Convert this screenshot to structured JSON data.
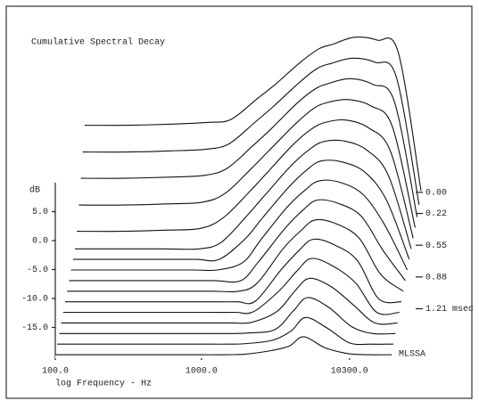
{
  "chart_data": {
    "type": "waterfall",
    "title": "Cumulative Spectral Decay",
    "y_label": "dB",
    "x_label": "log Frequency - Hz",
    "annotation": "MLSSA",
    "log_x": true,
    "color": "#111111",
    "x": [
      100,
      200,
      400,
      700,
      1000,
      1500,
      2000,
      3000,
      4000,
      5000,
      7000,
      10000,
      14000,
      20000
    ],
    "xlim": [
      100,
      20000
    ],
    "xticks": [
      {
        "value": 100,
        "label": "100.0"
      },
      {
        "value": 1000,
        "label": "1000.0"
      },
      {
        "value": 10300,
        "label": "10300.0"
      }
    ],
    "ylim": [
      -20,
      10
    ],
    "yticks": [
      {
        "value": 5,
        "label": "5.0"
      },
      {
        "value": 0,
        "label": "0.0"
      },
      {
        "value": -5,
        "label": "-5.0"
      },
      {
        "value": -10,
        "label": "-10.0"
      },
      {
        "value": -15,
        "label": "-15.0"
      }
    ],
    "z": [
      0,
      0.11,
      0.22,
      0.33,
      0.44,
      0.55,
      0.66,
      0.77,
      0.88,
      0.99,
      1.1,
      1.21,
      1.32,
      1.43,
      1.54,
      1.65
    ],
    "zticks": [
      {
        "value": 0,
        "label": "0.00"
      },
      {
        "value": 0.22,
        "label": "0.22"
      },
      {
        "value": 0.55,
        "label": "0.55"
      },
      {
        "value": 0.88,
        "label": "0.88"
      },
      {
        "value": 1.21,
        "label": "1.21 msec"
      }
    ],
    "series": [
      {
        "values": [
          -7.5,
          -7.5,
          -7.3,
          -7,
          -6.5,
          -3,
          -0.5,
          3.4,
          5.7,
          6.5,
          7.7,
          7.2,
          5,
          -18.8
        ]
      },
      {
        "values": [
          -10.3,
          -10.3,
          -10.1,
          -9.8,
          -8.9,
          -5.2,
          -2.5,
          1.6,
          4.1,
          5.0,
          5.9,
          5.2,
          2.6,
          -19.4
        ]
      },
      {
        "values": [
          -13.0,
          -13.0,
          -12.8,
          -12.5,
          -11.3,
          -7.4,
          -4.5,
          -0.1,
          2.4,
          3.4,
          4.2,
          3.2,
          0.2,
          -19.7
        ]
      },
      {
        "values": [
          -15.8,
          -15.8,
          -15.6,
          -15.3,
          -13.8,
          -9.6,
          -6.4,
          -1.9,
          0.8,
          1.9,
          2.4,
          1.3,
          -2.3,
          -19.7
        ]
      },
      {
        "values": [
          -18.5,
          -18.5,
          -18.3,
          -18.0,
          -16.2,
          -11.8,
          -8.4,
          -3.6,
          -0.9,
          0.3,
          0.7,
          -0.7,
          -4.7,
          -19.7
        ]
      },
      {
        "values": [
          -19.7,
          -19.7,
          -19.7,
          -19.7,
          -18.6,
          -14.0,
          -10.4,
          -5.4,
          -2.6,
          -1.2,
          -1.1,
          -2.7,
          -7.1,
          -19.7
        ]
      },
      {
        "values": [
          -19.7,
          -19.7,
          -19.7,
          -19.7,
          -19.7,
          -16.2,
          -12.4,
          -7.2,
          -4.2,
          -2.7,
          -2.9,
          -4.7,
          -9.5,
          -19.7
        ]
      },
      {
        "values": [
          -19.7,
          -19.7,
          -19.7,
          -19.7,
          -19.7,
          -18.4,
          -14.4,
          -8.9,
          -5.9,
          -4.3,
          -4.6,
          -6.7,
          -11.9,
          -19.7
        ]
      },
      {
        "values": [
          -19.7,
          -19.7,
          -19.7,
          -19.7,
          -19.7,
          -19.7,
          -16.3,
          -10.7,
          -7.5,
          -5.8,
          -6.4,
          -8.6,
          -14.4,
          -19.7
        ]
      },
      {
        "values": [
          -19.7,
          -19.7,
          -19.7,
          -19.7,
          -19.7,
          -19.7,
          -18.3,
          -12.4,
          -9.2,
          -7.4,
          -8.1,
          -10.6,
          -16.8,
          -19.7
        ]
      },
      {
        "values": [
          -19.7,
          -19.7,
          -19.7,
          -19.7,
          -19.7,
          -19.7,
          -19.6,
          -14.2,
          -10.8,
          -8.9,
          -9.9,
          -12.6,
          -19.2,
          -19.7
        ]
      },
      {
        "values": [
          -19.7,
          -19.7,
          -19.7,
          -19.7,
          -19.7,
          -19.7,
          -19.6,
          -16.0,
          -12.5,
          -10.4,
          -11.7,
          -14.6,
          -19.7,
          -19.7
        ]
      },
      {
        "values": [
          -19.7,
          -19.7,
          -19.7,
          -19.7,
          -19.7,
          -19.7,
          -19.6,
          -17.7,
          -14.1,
          -12.0,
          -13.4,
          -16.6,
          -19.7,
          -19.7
        ]
      },
      {
        "values": [
          -19.7,
          -19.7,
          -19.7,
          -19.7,
          -19.7,
          -19.7,
          -19.6,
          -19.0,
          -15.8,
          -13.5,
          -15.2,
          -18.5,
          -19.7,
          -19.7
        ]
      },
      {
        "values": [
          -19.7,
          -19.7,
          -19.7,
          -19.7,
          -19.7,
          -19.7,
          -19.6,
          -19.0,
          -17.4,
          -15.1,
          -16.9,
          -19.5,
          -19.7,
          -19.7
        ]
      },
      {
        "values": [
          -19.7,
          -19.7,
          -19.7,
          -19.7,
          -19.7,
          -19.7,
          -19.6,
          -19.0,
          -18.2,
          -16.6,
          -18.5,
          -19.5,
          -19.7,
          -19.7
        ]
      }
    ]
  }
}
